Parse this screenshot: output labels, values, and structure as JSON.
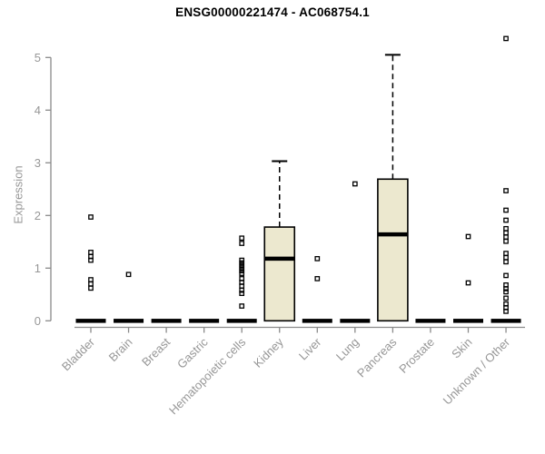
{
  "chart_data": {
    "type": "boxplot",
    "title": "ENSG00000221474 - AC068754.1",
    "ylabel": "Expression",
    "xlabel": "",
    "ylim": [
      0,
      5.4
    ],
    "yticks": [
      0,
      1,
      2,
      3,
      4,
      5
    ],
    "grid": false,
    "legend": "none",
    "categories": [
      "Bladder",
      "Brain",
      "Breast",
      "Gastric",
      "Hematopoietic cells",
      "Kidney",
      "Liver",
      "Lung",
      "Pancreas",
      "Prostate",
      "Skin",
      "Unknown / Other"
    ],
    "colors": {
      "box_fill": "#ECE8CF",
      "box_border": "#000000",
      "median": "#000000",
      "whisker": "#000000",
      "outlier": "#000000",
      "axis": "#8A8A8A",
      "tick_label": "#979797",
      "title": "#000000",
      "background": "#FFFFFF"
    },
    "boxes": [
      {
        "category": "Bladder",
        "q1": 0,
        "median": 0,
        "q3": 0,
        "whisker_low": 0,
        "whisker_high": 0,
        "outliers": [
          1.97,
          1.3,
          1.22,
          1.15,
          0.78,
          0.7,
          0.62
        ]
      },
      {
        "category": "Brain",
        "q1": 0,
        "median": 0,
        "q3": 0,
        "whisker_low": 0,
        "whisker_high": 0,
        "outliers": [
          0.88
        ]
      },
      {
        "category": "Breast",
        "q1": 0,
        "median": 0,
        "q3": 0,
        "whisker_low": 0,
        "whisker_high": 0,
        "outliers": []
      },
      {
        "category": "Gastric",
        "q1": 0,
        "median": 0,
        "q3": 0,
        "whisker_low": 0,
        "whisker_high": 0,
        "outliers": []
      },
      {
        "category": "Hematopoietic cells",
        "q1": 0,
        "median": 0,
        "q3": 0,
        "whisker_low": 0,
        "whisker_high": 0,
        "outliers": [
          1.57,
          1.47,
          1.15,
          1.1,
          1.05,
          1.0,
          0.95,
          0.9,
          0.8,
          0.73,
          0.66,
          0.58,
          0.52,
          0.28
        ]
      },
      {
        "category": "Kidney",
        "q1": 0,
        "median": 1.18,
        "q3": 1.78,
        "whisker_low": 0,
        "whisker_high": 3.03,
        "outliers": []
      },
      {
        "category": "Liver",
        "q1": 0,
        "median": 0,
        "q3": 0,
        "whisker_low": 0,
        "whisker_high": 0,
        "outliers": [
          1.18,
          0.8
        ]
      },
      {
        "category": "Lung",
        "q1": 0,
        "median": 0,
        "q3": 0,
        "whisker_low": 0,
        "whisker_high": 0,
        "outliers": [
          2.6
        ]
      },
      {
        "category": "Pancreas",
        "q1": 0,
        "median": 1.64,
        "q3": 2.69,
        "whisker_low": 0,
        "whisker_high": 5.05,
        "outliers": []
      },
      {
        "category": "Prostate",
        "q1": 0,
        "median": 0,
        "q3": 0,
        "whisker_low": 0,
        "whisker_high": 0,
        "outliers": []
      },
      {
        "category": "Skin",
        "q1": 0,
        "median": 0,
        "q3": 0,
        "whisker_low": 0,
        "whisker_high": 0,
        "outliers": [
          1.6,
          0.72
        ]
      },
      {
        "category": "Unknown / Other",
        "q1": 0,
        "median": 0,
        "q3": 0,
        "whisker_low": 0,
        "whisker_high": 0,
        "outliers": [
          5.36,
          2.47,
          2.1,
          1.91,
          1.75,
          1.67,
          1.59,
          1.51,
          1.28,
          1.2,
          1.12,
          0.86,
          0.68,
          0.61,
          0.55,
          0.43,
          0.32,
          0.25,
          0.18
        ]
      }
    ]
  }
}
